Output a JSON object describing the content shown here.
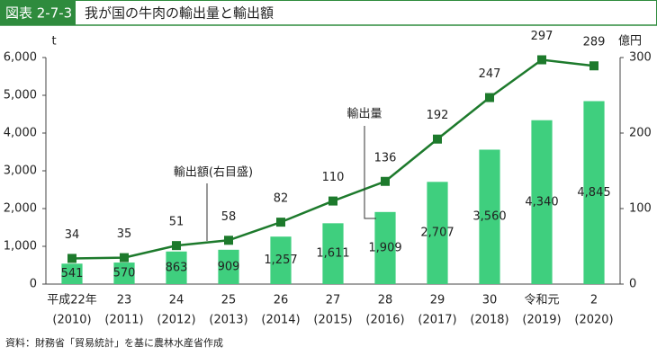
{
  "header": {
    "label": "図表 2-7-3",
    "title": "我が国の牛肉の輸出量と輸出額"
  },
  "chart_data": {
    "type": "combo",
    "categories": [
      "平成22年",
      "23",
      "24",
      "25",
      "26",
      "27",
      "28",
      "29",
      "30",
      "令和元",
      "2"
    ],
    "category_years": [
      "(2010)",
      "(2011)",
      "(2012)",
      "(2013)",
      "(2014)",
      "(2015)",
      "(2016)",
      "(2017)",
      "(2018)",
      "(2019)",
      "(2020)"
    ],
    "y_label": "t",
    "y2_label": "億円",
    "ylim": [
      0,
      6000
    ],
    "yticks": [
      0,
      {
        "value": 1000,
        "label": "1,000"
      },
      {
        "value": 2000,
        "label": "2,000"
      },
      {
        "value": 3000,
        "label": "3,000"
      },
      {
        "value": 4000,
        "label": "4,000"
      },
      {
        "value": 5000,
        "label": "5,000"
      },
      {
        "value": 6000,
        "label": "6,000"
      }
    ],
    "y2lim": [
      0,
      300
    ],
    "y2ticks": [
      0,
      100,
      200,
      300
    ],
    "series": [
      {
        "name": "輸出量",
        "type": "bar",
        "color": "#3fcf7e",
        "values": [
          541,
          570,
          863,
          909,
          1257,
          1611,
          1909,
          2707,
          3560,
          4340,
          4845
        ],
        "value_labels": [
          "541",
          "570",
          "863",
          "909",
          "1,257",
          "1,611",
          "1,909",
          "2,707",
          "3,560",
          "4,340",
          "4,845"
        ]
      },
      {
        "name": "輸出額(右目盛)",
        "type": "line",
        "axis": "y2",
        "color": "#1d7a2c",
        "values": [
          34,
          35,
          51,
          58,
          82,
          110,
          136,
          192,
          247,
          297,
          289
        ]
      }
    ],
    "source": "資料：財務省「貿易統計」を基に農林水産省作成"
  }
}
